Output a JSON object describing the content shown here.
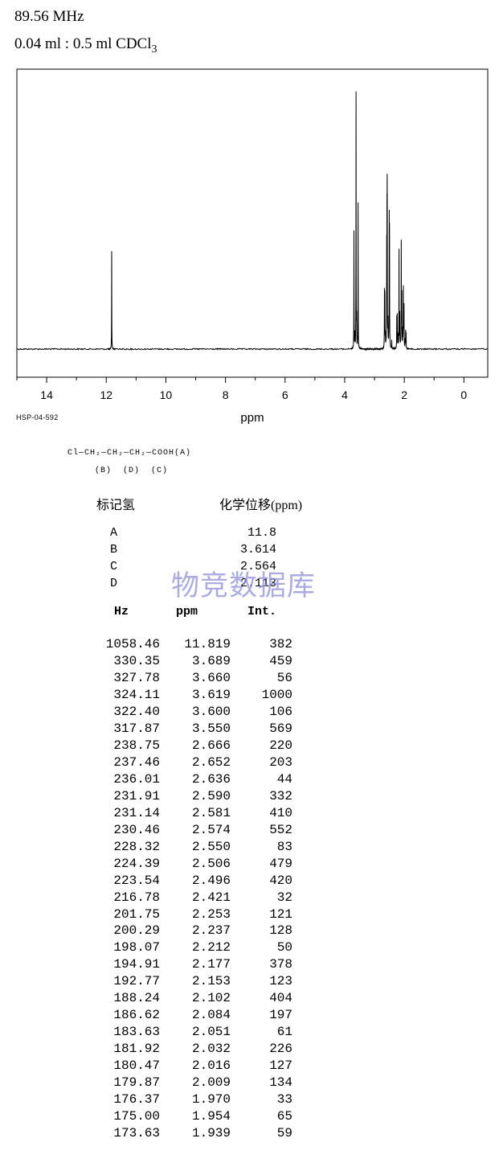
{
  "header": {
    "frequency": "89.56 MHz",
    "solvent_main": "0.04 ml : 0.5 ml CDCl",
    "solvent_sub": "3"
  },
  "chart_data": {
    "type": "line",
    "xlabel": "ppm",
    "xlim": [
      15,
      -0.8
    ],
    "x_ticks": [
      14,
      12,
      10,
      8,
      6,
      4,
      2,
      0
    ],
    "x_tick_labels": [
      "14",
      "12",
      "10",
      "8",
      "6",
      "4",
      "2",
      "0"
    ],
    "x_reversed": true,
    "y_axis_visible": false,
    "peaks": [
      {
        "ppm": 11.819,
        "intensity": 382
      },
      {
        "ppm": 3.689,
        "intensity": 459
      },
      {
        "ppm": 3.66,
        "intensity": 56
      },
      {
        "ppm": 3.619,
        "intensity": 1000
      },
      {
        "ppm": 3.6,
        "intensity": 106
      },
      {
        "ppm": 3.55,
        "intensity": 569
      },
      {
        "ppm": 2.666,
        "intensity": 220
      },
      {
        "ppm": 2.652,
        "intensity": 203
      },
      {
        "ppm": 2.636,
        "intensity": 44
      },
      {
        "ppm": 2.59,
        "intensity": 332
      },
      {
        "ppm": 2.581,
        "intensity": 410
      },
      {
        "ppm": 2.574,
        "intensity": 552
      },
      {
        "ppm": 2.55,
        "intensity": 83
      },
      {
        "ppm": 2.506,
        "intensity": 479
      },
      {
        "ppm": 2.496,
        "intensity": 420
      },
      {
        "ppm": 2.421,
        "intensity": 32
      },
      {
        "ppm": 2.253,
        "intensity": 121
      },
      {
        "ppm": 2.237,
        "intensity": 128
      },
      {
        "ppm": 2.212,
        "intensity": 50
      },
      {
        "ppm": 2.177,
        "intensity": 378
      },
      {
        "ppm": 2.153,
        "intensity": 123
      },
      {
        "ppm": 2.102,
        "intensity": 404
      },
      {
        "ppm": 2.084,
        "intensity": 197
      },
      {
        "ppm": 2.051,
        "intensity": 61
      },
      {
        "ppm": 2.032,
        "intensity": 226
      },
      {
        "ppm": 2.016,
        "intensity": 127
      },
      {
        "ppm": 2.009,
        "intensity": 134
      },
      {
        "ppm": 1.97,
        "intensity": 33
      },
      {
        "ppm": 1.954,
        "intensity": 65
      },
      {
        "ppm": 1.939,
        "intensity": 59
      }
    ],
    "colors": {
      "line": "#000000",
      "frame": "#000000",
      "background": "#ffffff"
    }
  },
  "spectrum_code": "HSP-04-592",
  "structure": {
    "formula": "Cl—CH₂—CH₂—CH₂—COOH(A)",
    "labels": "(B)  (D)  (C)"
  },
  "assignment_table": {
    "header_label": "标记氢",
    "header_shift": "化学位移(ppm)",
    "rows": [
      {
        "label": "A",
        "shift": "11.8"
      },
      {
        "label": "B",
        "shift": "3.614"
      },
      {
        "label": "C",
        "shift": "2.564"
      },
      {
        "label": "D",
        "shift": "2.113"
      }
    ]
  },
  "watermark": "物竞数据库",
  "peak_table": {
    "headers": [
      "Hz",
      "ppm",
      "Int."
    ],
    "rows": [
      [
        "1058.46",
        "11.819",
        "382"
      ],
      [
        "330.35",
        "3.689",
        "459"
      ],
      [
        "327.78",
        "3.660",
        "56"
      ],
      [
        "324.11",
        "3.619",
        "1000"
      ],
      [
        "322.40",
        "3.600",
        "106"
      ],
      [
        "317.87",
        "3.550",
        "569"
      ],
      [
        "238.75",
        "2.666",
        "220"
      ],
      [
        "237.46",
        "2.652",
        "203"
      ],
      [
        "236.01",
        "2.636",
        "44"
      ],
      [
        "231.91",
        "2.590",
        "332"
      ],
      [
        "231.14",
        "2.581",
        "410"
      ],
      [
        "230.46",
        "2.574",
        "552"
      ],
      [
        "228.32",
        "2.550",
        "83"
      ],
      [
        "224.39",
        "2.506",
        "479"
      ],
      [
        "223.54",
        "2.496",
        "420"
      ],
      [
        "216.78",
        "2.421",
        "32"
      ],
      [
        "201.75",
        "2.253",
        "121"
      ],
      [
        "200.29",
        "2.237",
        "128"
      ],
      [
        "198.07",
        "2.212",
        "50"
      ],
      [
        "194.91",
        "2.177",
        "378"
      ],
      [
        "192.77",
        "2.153",
        "123"
      ],
      [
        "188.24",
        "2.102",
        "404"
      ],
      [
        "186.62",
        "2.084",
        "197"
      ],
      [
        "183.63",
        "2.051",
        "61"
      ],
      [
        "181.92",
        "2.032",
        "226"
      ],
      [
        "180.47",
        "2.016",
        "127"
      ],
      [
        "179.87",
        "2.009",
        "134"
      ],
      [
        "176.37",
        "1.970",
        "33"
      ],
      [
        "175.00",
        "1.954",
        "65"
      ],
      [
        "173.63",
        "1.939",
        "59"
      ]
    ]
  }
}
